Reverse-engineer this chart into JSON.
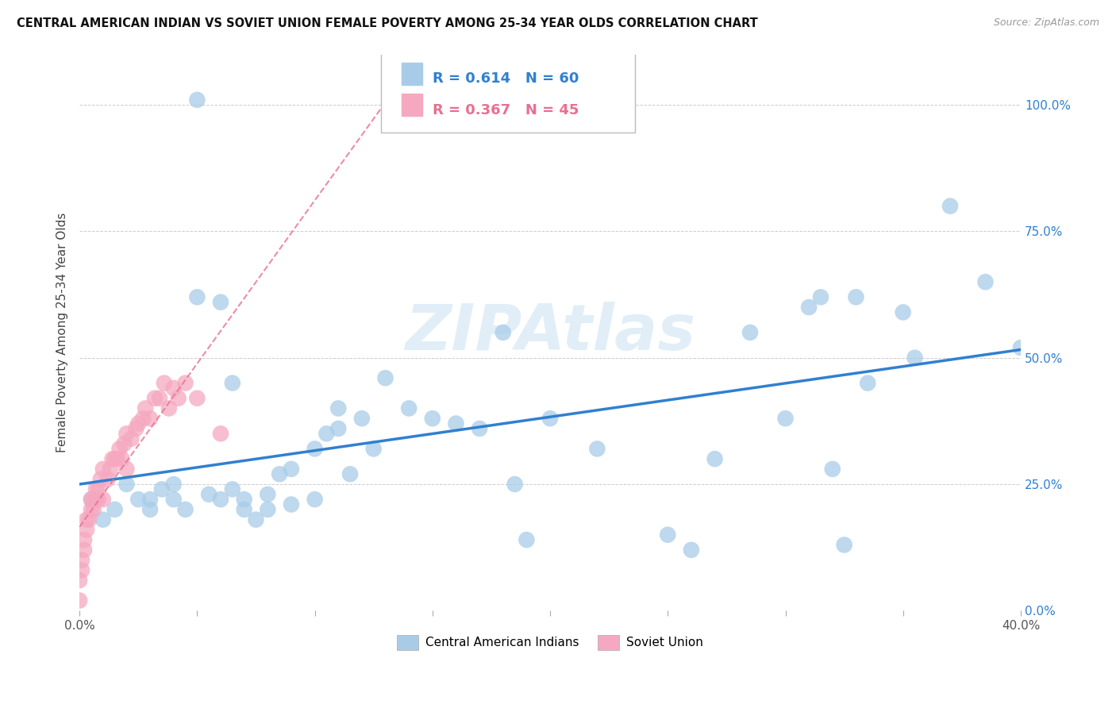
{
  "title": "CENTRAL AMERICAN INDIAN VS SOVIET UNION FEMALE POVERTY AMONG 25-34 YEAR OLDS CORRELATION CHART",
  "source": "Source: ZipAtlas.com",
  "ylabel": "Female Poverty Among 25-34 Year Olds",
  "xlim": [
    0.0,
    0.4
  ],
  "ylim": [
    0.0,
    1.1
  ],
  "xtick_positions": [
    0.0,
    0.05,
    0.1,
    0.15,
    0.2,
    0.25,
    0.3,
    0.35,
    0.4
  ],
  "xtick_labels_show": {
    "0.0": "0.0%",
    "0.4": "40.0%"
  },
  "yticks": [
    0.0,
    0.25,
    0.5,
    0.75,
    1.0
  ],
  "background_color": "#ffffff",
  "grid_color": "#cccccc",
  "blue_color": "#a8cce8",
  "pink_color": "#f5a8c0",
  "blue_line_color": "#3080d0",
  "pink_line_color": "#e87090",
  "legend_blue_r": "R = 0.614",
  "legend_blue_n": "N = 60",
  "legend_pink_r": "R = 0.367",
  "legend_pink_n": "N = 45",
  "watermark": "ZIPAtlas",
  "blue_scatter_x": [
    0.005,
    0.01,
    0.015,
    0.02,
    0.025,
    0.03,
    0.03,
    0.035,
    0.04,
    0.04,
    0.045,
    0.05,
    0.05,
    0.055,
    0.06,
    0.06,
    0.065,
    0.065,
    0.07,
    0.07,
    0.075,
    0.08,
    0.08,
    0.085,
    0.09,
    0.09,
    0.1,
    0.1,
    0.105,
    0.11,
    0.11,
    0.115,
    0.12,
    0.125,
    0.13,
    0.14,
    0.15,
    0.16,
    0.17,
    0.18,
    0.185,
    0.19,
    0.2,
    0.22,
    0.25,
    0.26,
    0.27,
    0.285,
    0.3,
    0.31,
    0.315,
    0.32,
    0.325,
    0.33,
    0.335,
    0.35,
    0.355,
    0.37,
    0.385,
    0.4
  ],
  "blue_scatter_y": [
    0.22,
    0.18,
    0.2,
    0.25,
    0.22,
    0.2,
    0.22,
    0.24,
    0.25,
    0.22,
    0.2,
    0.62,
    1.01,
    0.23,
    0.61,
    0.22,
    0.24,
    0.45,
    0.22,
    0.2,
    0.18,
    0.23,
    0.2,
    0.27,
    0.28,
    0.21,
    0.32,
    0.22,
    0.35,
    0.4,
    0.36,
    0.27,
    0.38,
    0.32,
    0.46,
    0.4,
    0.38,
    0.37,
    0.36,
    0.55,
    0.25,
    0.14,
    0.38,
    0.32,
    0.15,
    0.12,
    0.3,
    0.55,
    0.38,
    0.6,
    0.62,
    0.28,
    0.13,
    0.62,
    0.45,
    0.59,
    0.5,
    0.8,
    0.65,
    0.52
  ],
  "pink_scatter_x": [
    0.0,
    0.0,
    0.001,
    0.001,
    0.002,
    0.002,
    0.003,
    0.003,
    0.004,
    0.005,
    0.005,
    0.006,
    0.006,
    0.007,
    0.007,
    0.008,
    0.008,
    0.009,
    0.01,
    0.01,
    0.012,
    0.013,
    0.014,
    0.015,
    0.016,
    0.017,
    0.018,
    0.019,
    0.02,
    0.02,
    0.022,
    0.024,
    0.025,
    0.027,
    0.028,
    0.03,
    0.032,
    0.034,
    0.036,
    0.038,
    0.04,
    0.042,
    0.045,
    0.05,
    0.06
  ],
  "pink_scatter_y": [
    0.02,
    0.06,
    0.08,
    0.1,
    0.12,
    0.14,
    0.16,
    0.18,
    0.18,
    0.2,
    0.22,
    0.2,
    0.22,
    0.22,
    0.24,
    0.22,
    0.24,
    0.26,
    0.22,
    0.28,
    0.26,
    0.28,
    0.3,
    0.3,
    0.3,
    0.32,
    0.3,
    0.33,
    0.28,
    0.35,
    0.34,
    0.36,
    0.37,
    0.38,
    0.4,
    0.38,
    0.42,
    0.42,
    0.45,
    0.4,
    0.44,
    0.42,
    0.45,
    0.42,
    0.35
  ]
}
